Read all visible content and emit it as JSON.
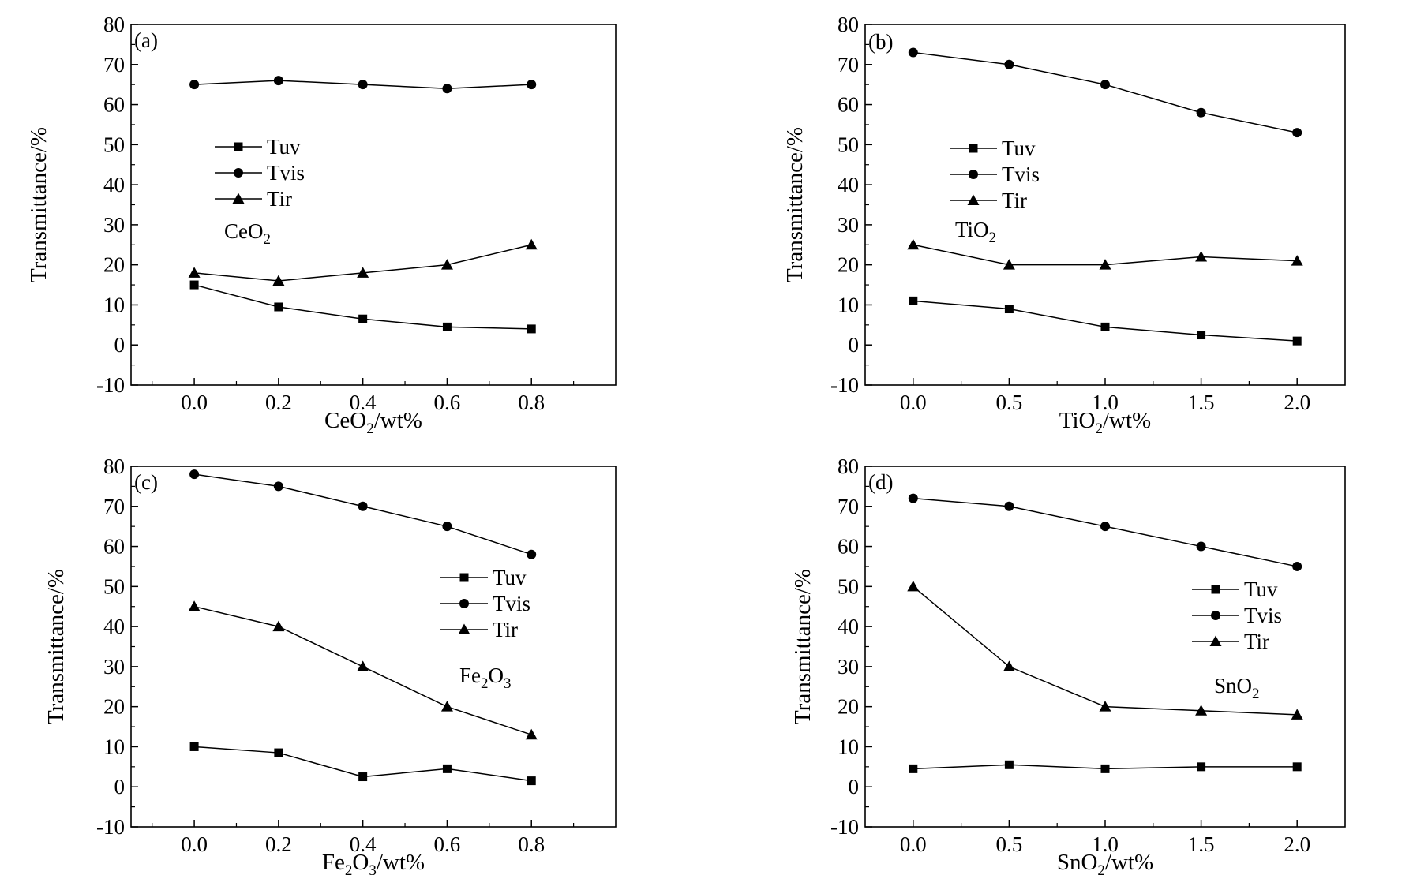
{
  "chart_data": [
    {
      "type": "line",
      "panel_label": "(a)",
      "annotation": {
        "base": "CeO",
        "sub": "2",
        "tail": "",
        "sub2": ""
      },
      "xlabel": {
        "base": "CeO",
        "sub": "2",
        "tail": "/wt%",
        "sub2": ""
      },
      "ylabel": "Transmittance/%",
      "x": [
        0.0,
        0.2,
        0.4,
        0.6,
        0.8
      ],
      "xticks": [
        "0.0",
        "0.2",
        "0.4",
        "0.6",
        "0.8"
      ],
      "xlim": [
        -0.15,
        1.0
      ],
      "yticks": [
        "80",
        "70",
        "60",
        "50",
        "40",
        "30",
        "20",
        "10",
        "0",
        "-10"
      ],
      "ylim": [
        -10,
        80
      ],
      "legend": [
        "Tuv",
        "Tvis",
        "Tir"
      ],
      "series": [
        {
          "name": "Tuv",
          "marker": "square",
          "values": [
            15,
            9.5,
            6.5,
            4.5,
            4
          ]
        },
        {
          "name": "Tvis",
          "marker": "circle",
          "values": [
            65,
            66,
            65,
            64,
            65
          ]
        },
        {
          "name": "Tir",
          "marker": "triangle",
          "values": [
            18,
            16,
            18,
            20,
            25
          ]
        }
      ]
    },
    {
      "type": "line",
      "panel_label": "(b)",
      "annotation": {
        "base": "TiO",
        "sub": "2",
        "tail": "",
        "sub2": ""
      },
      "xlabel": {
        "base": "TiO",
        "sub": "2",
        "tail": "/wt%",
        "sub2": ""
      },
      "ylabel": "Transmittance/%",
      "x": [
        0.0,
        0.5,
        1.0,
        1.5,
        2.0
      ],
      "xticks": [
        "0.0",
        "0.5",
        "1.0",
        "1.5",
        "2.0"
      ],
      "xlim": [
        -0.25,
        2.25
      ],
      "yticks": [
        "80",
        "70",
        "60",
        "50",
        "40",
        "30",
        "20",
        "10",
        "0",
        "-10"
      ],
      "ylim": [
        -10,
        80
      ],
      "legend": [
        "Tuv",
        "Tvis",
        "Tir"
      ],
      "series": [
        {
          "name": "Tuv",
          "marker": "square",
          "values": [
            11,
            9,
            4.5,
            2.5,
            1
          ]
        },
        {
          "name": "Tvis",
          "marker": "circle",
          "values": [
            73,
            70,
            65,
            58,
            53
          ]
        },
        {
          "name": "Tir",
          "marker": "triangle",
          "values": [
            25,
            20,
            20,
            22,
            21
          ]
        }
      ]
    },
    {
      "type": "line",
      "panel_label": "(c)",
      "annotation": {
        "base": "Fe",
        "sub": "2",
        "tail": "O",
        "sub2": "3"
      },
      "xlabel": {
        "base": "Fe",
        "sub": "2",
        "tail": "O",
        "sub2": "3",
        "tail2": "/wt%"
      },
      "ylabel": "Transmittance/%",
      "x": [
        0.0,
        0.2,
        0.4,
        0.6,
        0.8
      ],
      "xticks": [
        "0.0",
        "0.2",
        "0.4",
        "0.6",
        "0.8"
      ],
      "xlim": [
        -0.15,
        1.0
      ],
      "yticks": [
        "80",
        "70",
        "60",
        "50",
        "40",
        "30",
        "20",
        "10",
        "0",
        "-10"
      ],
      "ylim": [
        -10,
        80
      ],
      "legend": [
        "Tuv",
        "Tvis",
        "Tir"
      ],
      "series": [
        {
          "name": "Tuv",
          "marker": "square",
          "values": [
            10,
            8.5,
            2.5,
            4.5,
            1.5
          ]
        },
        {
          "name": "Tvis",
          "marker": "circle",
          "values": [
            78,
            75,
            70,
            65,
            58
          ]
        },
        {
          "name": "Tir",
          "marker": "triangle",
          "values": [
            45,
            40,
            30,
            20,
            13
          ]
        }
      ]
    },
    {
      "type": "line",
      "panel_label": "(d)",
      "annotation": {
        "base": "SnO",
        "sub": "2",
        "tail": "",
        "sub2": ""
      },
      "xlabel": {
        "base": "SnO",
        "sub": "2",
        "tail": "/wt%",
        "sub2": ""
      },
      "ylabel": "Transmittance/%",
      "x": [
        0.0,
        0.5,
        1.0,
        1.5,
        2.0
      ],
      "xticks": [
        "0.0",
        "0.5",
        "1.0",
        "1.5",
        "2.0"
      ],
      "xlim": [
        -0.25,
        2.25
      ],
      "yticks": [
        "80",
        "70",
        "60",
        "50",
        "40",
        "30",
        "20",
        "10",
        "0",
        "-10"
      ],
      "ylim": [
        -10,
        80
      ],
      "legend": [
        "Tuv",
        "Tvis",
        "Tir"
      ],
      "series": [
        {
          "name": "Tuv",
          "marker": "square",
          "values": [
            4.5,
            5.5,
            4.5,
            5,
            5
          ]
        },
        {
          "name": "Tvis",
          "marker": "circle",
          "values": [
            72,
            70,
            65,
            60,
            55
          ]
        },
        {
          "name": "Tir",
          "marker": "triangle",
          "values": [
            50,
            30,
            20,
            19,
            18
          ]
        }
      ]
    }
  ]
}
